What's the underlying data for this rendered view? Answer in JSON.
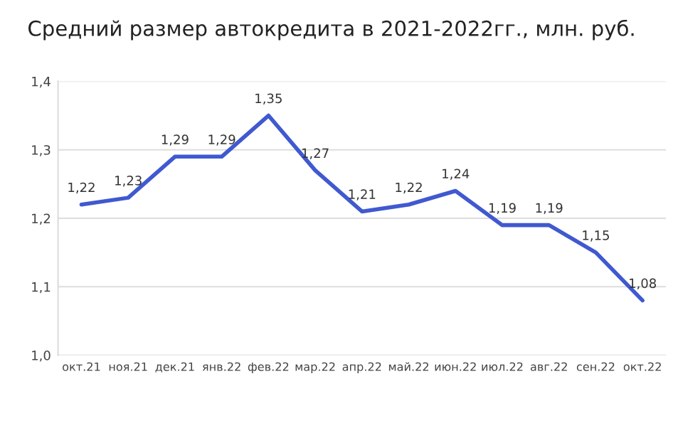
{
  "chart_data": {
    "type": "line",
    "title": "Средний размер автокредита в 2021-2022гг., млн. руб.",
    "categories": [
      "окт.21",
      "ноя.21",
      "дек.21",
      "янв.22",
      "фев.22",
      "мар.22",
      "апр.22",
      "май.22",
      "июн.22",
      "июл.22",
      "авг.22",
      "сен.22",
      "окт.22"
    ],
    "series": [
      {
        "color": "#4059d0",
        "values": [
          1.22,
          1.23,
          1.29,
          1.29,
          1.35,
          1.27,
          1.21,
          1.22,
          1.24,
          1.19,
          1.19,
          1.15,
          1.08
        ],
        "value_labels": [
          "1,22",
          "1,23",
          "1,29",
          "1,29",
          "1,35",
          "1,27",
          "1,21",
          "1,22",
          "1,24",
          "1,19",
          "1,19",
          "1,15",
          "1,08"
        ]
      }
    ],
    "ylim": [
      1.0,
      1.4
    ],
    "yticks": [
      {
        "value": 1.0,
        "label": "1,0"
      },
      {
        "value": 1.1,
        "label": "1,1"
      },
      {
        "value": 1.2,
        "label": "1,2"
      },
      {
        "value": 1.3,
        "label": "1,3"
      },
      {
        "value": 1.4,
        "label": "1,4"
      }
    ],
    "grid": "y",
    "marker": "none",
    "line_style": "solid"
  }
}
